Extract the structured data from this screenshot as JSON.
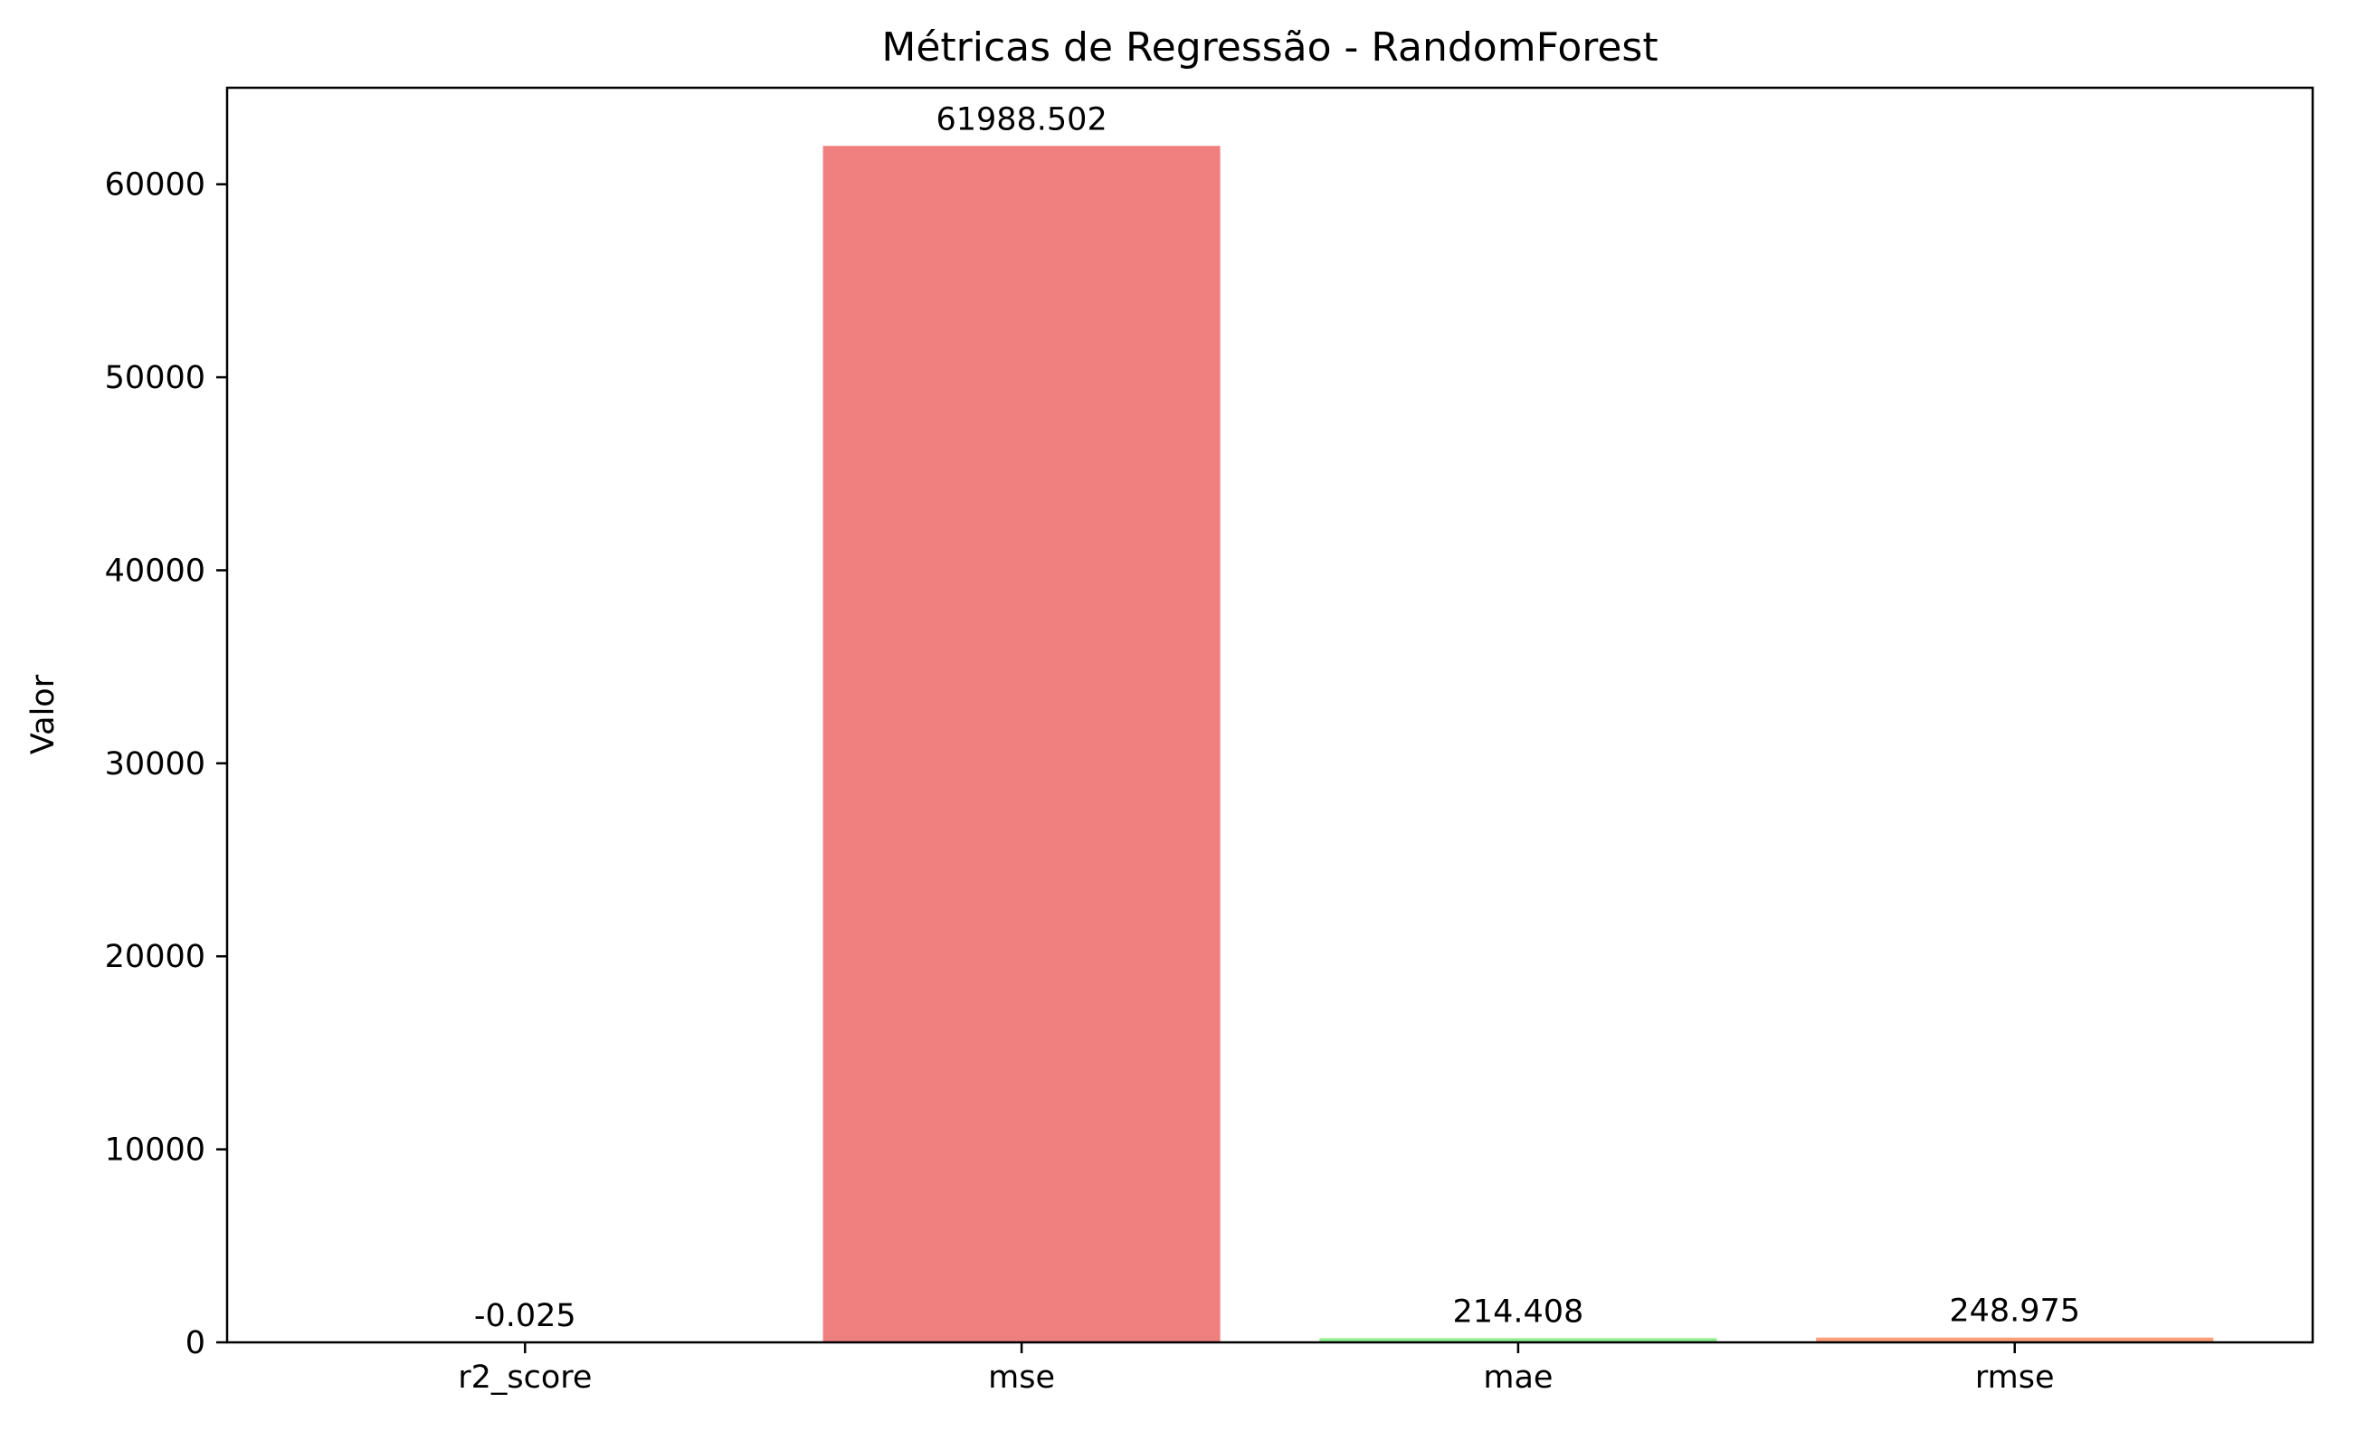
{
  "chart_data": {
    "type": "bar",
    "title": "Métricas de Regressão - RandomForest",
    "xlabel": "",
    "ylabel": "Valor",
    "categories": [
      "r2_score",
      "mse",
      "mae",
      "rmse"
    ],
    "values": [
      -0.025,
      61988.502,
      214.408,
      248.975
    ],
    "data_labels": [
      "-0.025",
      "61988.502",
      "214.408",
      "248.975"
    ],
    "colors": [
      "#87ceeb",
      "#f08080",
      "#90ee90",
      "#ffa07a"
    ],
    "ylim": [
      0,
      65000
    ],
    "yticks": [
      0,
      10000,
      20000,
      30000,
      40000,
      50000,
      60000
    ],
    "ytick_labels": [
      "0",
      "10000",
      "20000",
      "30000",
      "40000",
      "50000",
      "60000"
    ],
    "grid": false,
    "legend": "none"
  }
}
